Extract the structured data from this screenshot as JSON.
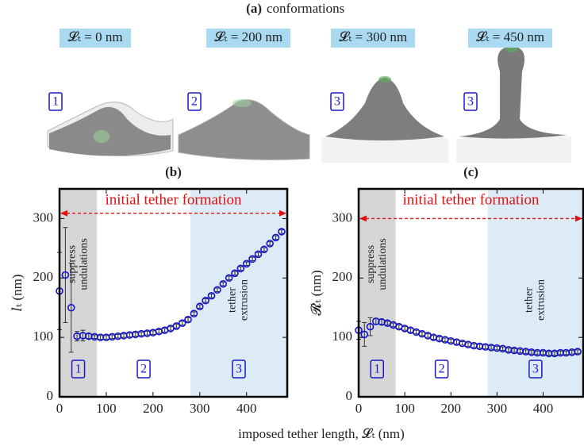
{
  "panel_a": {
    "label": "(a)",
    "title": "conformations",
    "items": [
      {
        "label": "𝓛ₜ = 0 nm",
        "stage": "1"
      },
      {
        "label": "𝓛ₜ = 200 nm",
        "stage": "2"
      },
      {
        "label": "𝓛ₜ = 300 nm",
        "stage": "3"
      },
      {
        "label": "𝓛ₜ = 450 nm",
        "stage": "3"
      }
    ]
  },
  "xlabel": "imposed tether length, 𝓛ₜ (nm)",
  "chart_data": [
    {
      "type": "scatter",
      "panel": "(b)",
      "ylabel": "𝑙ₜ (nm)",
      "xlim": [
        0,
        487
      ],
      "ylim": [
        0,
        350
      ],
      "xticks": [
        0,
        100,
        200,
        300,
        400
      ],
      "yticks": [
        0,
        100,
        200,
        300
      ],
      "annotation": {
        "text": "initial tether formation",
        "arrow_y": 309,
        "color": "#e01010"
      },
      "regions": [
        {
          "range": [
            0,
            80
          ],
          "color": "#d6d6d6",
          "text": [
            "suppress",
            "undulations"
          ],
          "stage": "1"
        },
        {
          "range": [
            80,
            280
          ],
          "stage": "2"
        },
        {
          "range": [
            280,
            487
          ],
          "color": "#dcebf6",
          "text": [
            "tether",
            "extrusion"
          ],
          "stage": "3"
        }
      ],
      "x": [
        0,
        12.5,
        25,
        37.5,
        50,
        62.5,
        75,
        87.5,
        100,
        112.5,
        125,
        137.5,
        150,
        162.5,
        175,
        187.5,
        200,
        212.5,
        225,
        237.5,
        250,
        262.5,
        275,
        287.5,
        300,
        312.5,
        325,
        337.5,
        350,
        362.5,
        375,
        387.5,
        400,
        412.5,
        425,
        437.5,
        450,
        462.5,
        475
      ],
      "series": [
        {
          "color": "#1414d0",
          "values": [
            178,
            205,
            150,
            102,
            103,
            102,
            101,
            100,
            100,
            101,
            102,
            103,
            104,
            105,
            106,
            107,
            108,
            110,
            112,
            115,
            119,
            124,
            130,
            140,
            152,
            162,
            170,
            180,
            190,
            200,
            208,
            216,
            224,
            232,
            240,
            248,
            258,
            268,
            278
          ],
          "errors": [
            65,
            80,
            75,
            8,
            9,
            4,
            3,
            3,
            3,
            3,
            3,
            3,
            3,
            3,
            3,
            3,
            3,
            3,
            3,
            3,
            3,
            3,
            3,
            3,
            3,
            3,
            3,
            3,
            3,
            3,
            3,
            3,
            3,
            3,
            3,
            3,
            3,
            3,
            3
          ]
        }
      ]
    },
    {
      "type": "scatter",
      "panel": "(c)",
      "ylabel": "𝓡ₜ (nm)",
      "xlim": [
        0,
        487
      ],
      "ylim": [
        0,
        350
      ],
      "xticks": [
        0,
        100,
        200,
        300,
        400
      ],
      "yticks": [
        0,
        100,
        200,
        300
      ],
      "annotation": {
        "text": "initial tether formation",
        "arrow_y": 300,
        "color": "#e01010"
      },
      "regions": [
        {
          "range": [
            0,
            80
          ],
          "color": "#d6d6d6",
          "text": [
            "suppress",
            "undulations"
          ],
          "stage": "1"
        },
        {
          "range": [
            80,
            280
          ],
          "stage": "2"
        },
        {
          "range": [
            280,
            487
          ],
          "color": "#dcebf6",
          "text": [
            "tether",
            "extrusion"
          ],
          "stage": "3"
        }
      ],
      "x": [
        0,
        12.5,
        25,
        37.5,
        50,
        62.5,
        75,
        87.5,
        100,
        112.5,
        125,
        137.5,
        150,
        162.5,
        175,
        187.5,
        200,
        212.5,
        225,
        237.5,
        250,
        262.5,
        275,
        287.5,
        300,
        312.5,
        325,
        337.5,
        350,
        362.5,
        375,
        387.5,
        400,
        412.5,
        425,
        437.5,
        450,
        462.5,
        475
      ],
      "series": [
        {
          "color": "#1414d0",
          "values": [
            112,
            105,
            118,
            127,
            126,
            124,
            121,
            118,
            115,
            112,
            109,
            106,
            103,
            100,
            98,
            96,
            94,
            92,
            90,
            88,
            86,
            85,
            84,
            83,
            82,
            81,
            79,
            78,
            77,
            76,
            75,
            74,
            74,
            73,
            73,
            74,
            74,
            75,
            76
          ],
          "errors": [
            15,
            20,
            15,
            5,
            4,
            3,
            3,
            3,
            3,
            3,
            3,
            3,
            3,
            3,
            3,
            3,
            3,
            3,
            3,
            3,
            3,
            3,
            3,
            3,
            3,
            3,
            3,
            3,
            3,
            3,
            3,
            3,
            3,
            3,
            3,
            3,
            3,
            3,
            3
          ]
        }
      ]
    }
  ]
}
